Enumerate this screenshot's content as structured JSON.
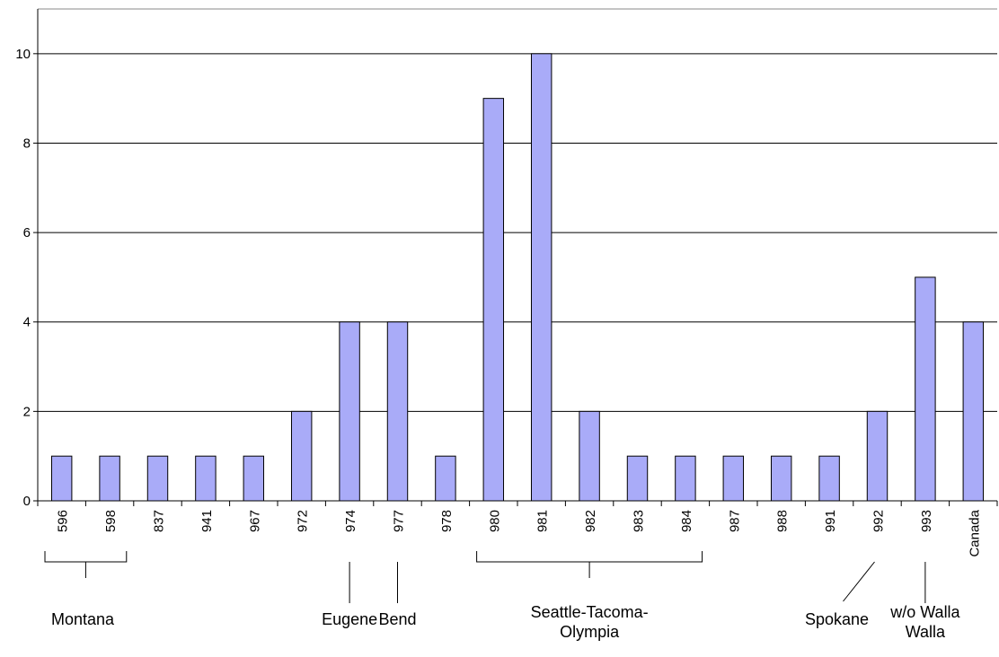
{
  "chart_data": {
    "type": "bar",
    "categories": [
      "596",
      "598",
      "837",
      "941",
      "967",
      "972",
      "974",
      "977",
      "978",
      "980",
      "981",
      "982",
      "983",
      "984",
      "987",
      "988",
      "991",
      "992",
      "993",
      "Canada"
    ],
    "values": [
      1,
      1,
      1,
      1,
      1,
      2,
      4,
      4,
      1,
      9,
      10,
      2,
      1,
      1,
      1,
      1,
      1,
      2,
      5,
      4
    ],
    "ylim": [
      0,
      11
    ],
    "yticks": [
      "0",
      "2",
      "4",
      "6",
      "8",
      "10"
    ],
    "grid": true,
    "colors": {
      "bar_fill": "#a9abf8",
      "bar_stroke": "#000000",
      "grid": "#000000"
    },
    "annotations": [
      {
        "text": [
          "Montana"
        ],
        "from": 0,
        "to": 1,
        "style": "bracket"
      },
      {
        "text": [
          "Eugene"
        ],
        "from": 6,
        "to": 6,
        "style": "line"
      },
      {
        "text": [
          "Bend"
        ],
        "from": 7,
        "to": 7,
        "style": "line"
      },
      {
        "text": [
          "Seattle-Tacoma-",
          "Olympia"
        ],
        "from": 9,
        "to": 13,
        "style": "bracket"
      },
      {
        "text": [
          "Spokane"
        ],
        "from": 17,
        "to": 17,
        "style": "slant"
      },
      {
        "text": [
          "w/o Walla",
          "Walla"
        ],
        "from": 18,
        "to": 18,
        "style": "line"
      }
    ]
  }
}
